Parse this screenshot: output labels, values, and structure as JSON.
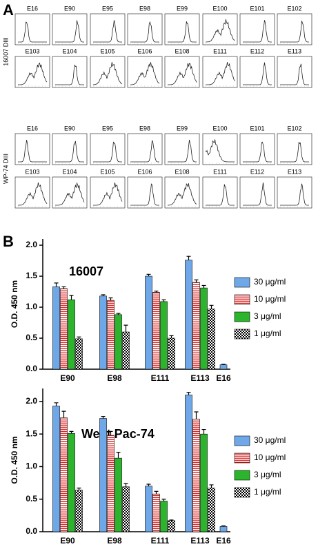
{
  "panel_a": {
    "label": "A",
    "groups": [
      {
        "label": "16007 DIII",
        "rows": [
          [
            "E16",
            "E90",
            "E95",
            "E98",
            "E99",
            "E100",
            "E101",
            "E102"
          ],
          [
            "E103",
            "E104",
            "E105",
            "E106",
            "E108",
            "E111",
            "E112",
            "E113"
          ]
        ]
      },
      {
        "label": "WP-74 DIII",
        "rows": [
          [
            "E16",
            "E90",
            "E95",
            "E98",
            "E99",
            "E100",
            "E101",
            "E102"
          ],
          [
            "E103",
            "E104",
            "E105",
            "E106",
            "E108",
            "E111",
            "E112",
            "E113"
          ]
        ]
      }
    ]
  },
  "panel_b": {
    "label": "B"
  },
  "chart_data": [
    {
      "type": "bar",
      "title": "16007",
      "y_label": "O.D. 450 nm",
      "categories": [
        "E90",
        "E98",
        "E111",
        "E113",
        "E16"
      ],
      "series": [
        {
          "name": "30 μg/ml",
          "color": "#6fa8e8",
          "pattern": "solid",
          "values": [
            1.33,
            1.18,
            1.5,
            1.76,
            0.07
          ],
          "errors": [
            0.06,
            0.02,
            0.03,
            0.06,
            0.01
          ]
        },
        {
          "name": "10 μg/ml",
          "color": "#e02828",
          "pattern": "stripes",
          "values": [
            1.3,
            1.11,
            1.24,
            1.4,
            null
          ],
          "errors": [
            0.03,
            0.04,
            0.02,
            0.04,
            null
          ]
        },
        {
          "name": "3 μg/ml",
          "color": "#2cb52c",
          "pattern": "solid",
          "values": [
            1.12,
            0.88,
            1.09,
            1.31,
            null
          ],
          "errors": [
            0.07,
            0.02,
            0.03,
            0.04,
            null
          ]
        },
        {
          "name": "1 μg/ml",
          "color": "#000000",
          "pattern": "checker",
          "values": [
            0.49,
            0.6,
            0.5,
            0.97,
            null
          ],
          "errors": [
            0.03,
            0.11,
            0.04,
            0.06,
            null
          ]
        }
      ],
      "ylim": [
        0,
        2.1
      ],
      "yticks": [
        {
          "value": 0,
          "label": "0.0"
        },
        0.5,
        {
          "value": 1,
          "label": "1.0"
        },
        1.5,
        {
          "value": 2,
          "label": "2.0"
        }
      ]
    },
    {
      "type": "bar",
      "title": "West Pac-74",
      "y_label": "O.D. 450 nm",
      "categories": [
        "E90",
        "E98",
        "E111",
        "E113",
        "E16"
      ],
      "series": [
        {
          "name": "30 μg/ml",
          "color": "#6fa8e8",
          "pattern": "solid",
          "values": [
            1.93,
            1.74,
            0.7,
            2.1,
            0.08
          ],
          "errors": [
            0.05,
            0.03,
            0.03,
            0.04,
            0.01
          ]
        },
        {
          "name": "10 μg/ml",
          "color": "#e02828",
          "pattern": "stripes",
          "values": [
            1.75,
            1.48,
            0.58,
            1.73,
            null
          ],
          "errors": [
            0.1,
            0.06,
            0.04,
            0.11,
            null
          ]
        },
        {
          "name": "3 μg/ml",
          "color": "#2cb52c",
          "pattern": "solid",
          "values": [
            1.51,
            1.13,
            0.47,
            1.5,
            null
          ],
          "errors": [
            0.03,
            0.09,
            0.03,
            0.07,
            null
          ]
        },
        {
          "name": "1 μg/ml",
          "color": "#000000",
          "pattern": "checker",
          "values": [
            0.64,
            0.69,
            0.17,
            0.67,
            null
          ],
          "errors": [
            0.03,
            0.05,
            0.01,
            0.05,
            null
          ]
        }
      ],
      "ylim": [
        0,
        2.2
      ],
      "yticks": [
        {
          "value": 0,
          "label": "0.0"
        },
        0.5,
        {
          "value": 1,
          "label": "1.0"
        },
        1.5,
        {
          "value": 2,
          "label": "2.0"
        }
      ]
    }
  ]
}
